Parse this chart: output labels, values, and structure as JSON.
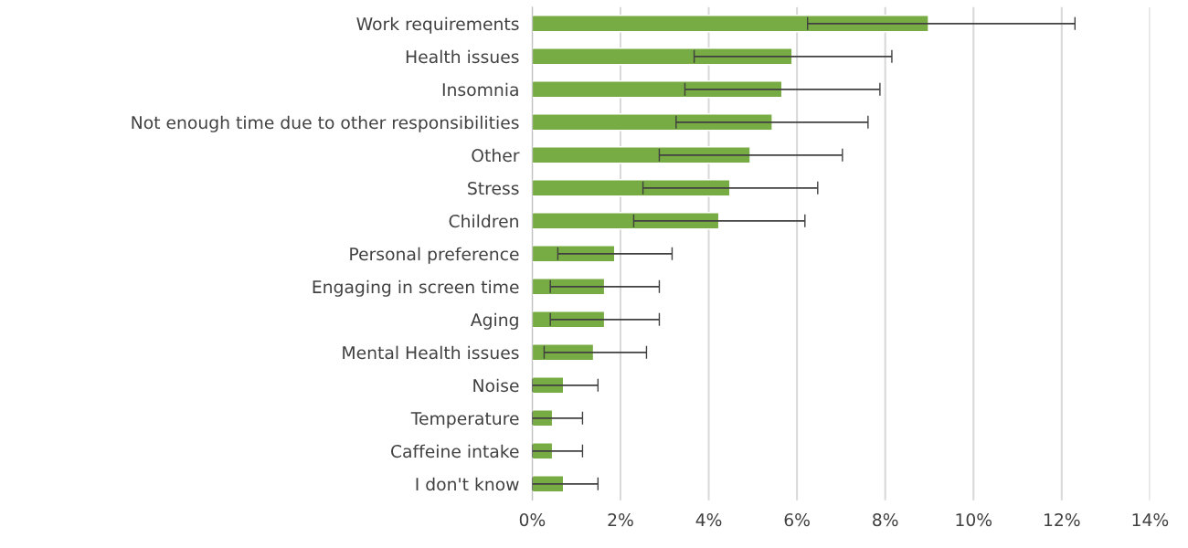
{
  "chart_data": {
    "type": "bar",
    "orientation": "horizontal",
    "categories": [
      "Work requirements",
      "Health issues",
      "Insomnia",
      "Not enough time due to other responsibilities",
      "Other",
      "Stress",
      "Children",
      "Personal preference",
      "Engaging in screen time",
      "Aging",
      "Mental Health issues",
      "Noise",
      "Temperature",
      "Caffeine intake",
      "I don't know"
    ],
    "values": [
      8.98,
      5.89,
      5.66,
      5.44,
      4.94,
      4.48,
      4.23,
      1.87,
      1.64,
      1.64,
      1.39,
      0.71,
      0.46,
      0.46,
      0.71
    ],
    "errors": [
      [
        6.24,
        12.3
      ],
      [
        3.67,
        8.15
      ],
      [
        3.46,
        7.88
      ],
      [
        3.26,
        7.61
      ],
      [
        2.88,
        7.03
      ],
      [
        2.51,
        6.47
      ],
      [
        2.3,
        6.18
      ],
      [
        0.58,
        3.17
      ],
      [
        0.41,
        2.88
      ],
      [
        0.41,
        2.88
      ],
      [
        0.27,
        2.59
      ],
      [
        0,
        1.49
      ],
      [
        0,
        1.14
      ],
      [
        0,
        1.14
      ],
      [
        0,
        1.49
      ]
    ],
    "color": "#77ab43",
    "xlim": [
      0,
      14
    ],
    "xticks": [
      {
        "value": 0,
        "label": "0%"
      },
      {
        "value": 2,
        "label": "2%"
      },
      {
        "value": 4,
        "label": "4%"
      },
      {
        "value": 6,
        "label": "6%"
      },
      {
        "value": 8,
        "label": "8%"
      },
      {
        "value": 10,
        "label": "10%"
      },
      {
        "value": 12,
        "label": "12%"
      },
      {
        "value": 14,
        "label": "14%"
      }
    ],
    "grid": "x"
  }
}
